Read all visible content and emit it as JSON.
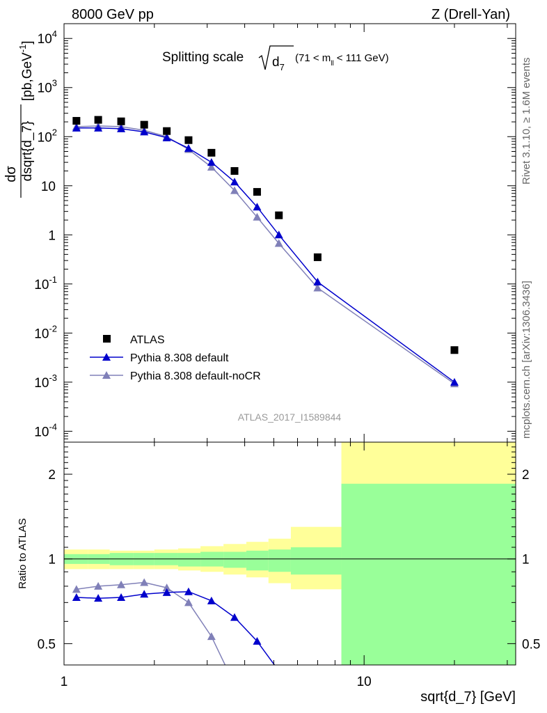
{
  "header": {
    "left": "8000 GeV pp",
    "right": "Z (Drell-Yan)"
  },
  "side_labels": {
    "rivet": "Rivet 3.1.10, ≥ 1.6M events",
    "mcplots": "mcplots.cern.ch [arXiv:1306.3436]"
  },
  "chart_data": [
    {
      "type": "scatter",
      "title": "Splitting scale",
      "title_math": "√d₇ (71 < mₗₗ < 111 GeV)",
      "title_parts": [
        "d",
        "7",
        "(71 < m",
        "ll",
        "< 111 GeV)"
      ],
      "watermark": "ATLAS_2017_I1589844",
      "ylabel_parts": [
        "dσ",
        "dsqrt{d_7}",
        "[pb,GeV",
        "-1",
        "]"
      ],
      "xscale": "log",
      "yscale": "log",
      "xlim": [
        1,
        32
      ],
      "ylim": [
        6e-05,
        20000
      ],
      "y_ticks": [
        {
          "value": 0.0001,
          "base": "10",
          "exp": "-4"
        },
        {
          "value": 0.001,
          "base": "10",
          "exp": "-3"
        },
        {
          "value": 0.01,
          "base": "10",
          "exp": "-2"
        },
        {
          "value": 0.1,
          "base": "10",
          "exp": "-1"
        },
        {
          "value": 1,
          "base": "1",
          "exp": ""
        },
        {
          "value": 10,
          "base": "10",
          "exp": ""
        },
        {
          "value": 100,
          "base": "10",
          "exp": "2"
        },
        {
          "value": 1000,
          "base": "10",
          "exp": "3"
        },
        {
          "value": 10000,
          "base": "10",
          "exp": "4"
        }
      ],
      "legend_position": "bottom-left",
      "series": [
        {
          "name": "ATLAS",
          "marker": "square",
          "color": "#000000",
          "x": [
            1.1,
            1.3,
            1.55,
            1.85,
            2.2,
            2.6,
            3.1,
            3.7,
            4.4,
            5.2,
            7.0,
            20.0
          ],
          "y": [
            210,
            220,
            205,
            175,
            130,
            85,
            47,
            20,
            7.5,
            2.5,
            0.35,
            0.0045
          ]
        },
        {
          "name": "Pythia 8.308 default",
          "marker": "triangle",
          "color": "#0000cc",
          "x": [
            1.1,
            1.3,
            1.55,
            1.85,
            2.2,
            2.6,
            3.1,
            3.7,
            4.4,
            5.2,
            7.0,
            20.0
          ],
          "y": [
            150,
            150,
            145,
            125,
            95,
            58,
            30,
            12,
            3.7,
            1.0,
            0.11,
            0.001
          ]
        },
        {
          "name": "Pythia 8.308 default-noCR",
          "marker": "triangle",
          "color": "#8080b8",
          "x": [
            1.1,
            1.3,
            1.55,
            1.85,
            2.2,
            2.6,
            3.1,
            3.7,
            4.4,
            5.2,
            7.0,
            20.0
          ],
          "y": [
            160,
            165,
            160,
            135,
            100,
            55,
            24,
            8,
            2.3,
            0.67,
            0.083,
            0.00093
          ]
        }
      ]
    },
    {
      "type": "line",
      "ylabel": "Ratio to ATLAS",
      "xlabel": "sqrt{d_7} [GeV]",
      "xscale": "log",
      "yscale": "log",
      "xlim": [
        1,
        32
      ],
      "ylim": [
        0.42,
        2.6
      ],
      "x_ticks": [
        {
          "value": 1,
          "label": "1"
        },
        {
          "value": 10,
          "label": "10"
        }
      ],
      "y_ticks": [
        {
          "value": 0.5,
          "label": "0.5"
        },
        {
          "value": 1,
          "label": "1"
        },
        {
          "value": 2,
          "label": "2"
        }
      ],
      "bands": {
        "bin_edges": [
          1,
          1.2,
          1.42,
          1.7,
          2.0,
          2.4,
          2.85,
          3.4,
          4.05,
          4.8,
          5.7,
          8.4,
          32
        ],
        "yellow_low": [
          0.92,
          0.92,
          0.92,
          0.92,
          0.92,
          0.91,
          0.9,
          0.88,
          0.86,
          0.82,
          0.78,
          0.42
        ],
        "yellow_high": [
          1.08,
          1.08,
          1.07,
          1.07,
          1.08,
          1.09,
          1.11,
          1.13,
          1.15,
          1.18,
          1.3,
          2.6
        ],
        "green_low": [
          0.96,
          0.96,
          0.95,
          0.95,
          0.95,
          0.94,
          0.94,
          0.93,
          0.91,
          0.9,
          0.88,
          0.42
        ],
        "green_high": [
          1.04,
          1.04,
          1.05,
          1.05,
          1.05,
          1.05,
          1.06,
          1.06,
          1.07,
          1.08,
          1.1,
          1.85
        ]
      },
      "series": [
        {
          "name": "Pythia 8.308 default",
          "color": "#0000cc",
          "x": [
            1.1,
            1.3,
            1.55,
            1.85,
            2.2,
            2.6,
            3.1,
            3.7,
            4.4,
            5.2
          ],
          "y": [
            0.73,
            0.725,
            0.73,
            0.75,
            0.76,
            0.765,
            0.71,
            0.62,
            0.51,
            0.4
          ]
        },
        {
          "name": "Pythia 8.308 default-noCR",
          "color": "#8080b8",
          "x": [
            1.1,
            1.3,
            1.55,
            1.85,
            2.2,
            2.6,
            3.1,
            3.6
          ],
          "y": [
            0.78,
            0.8,
            0.81,
            0.825,
            0.79,
            0.7,
            0.53,
            0.38
          ]
        }
      ]
    }
  ]
}
